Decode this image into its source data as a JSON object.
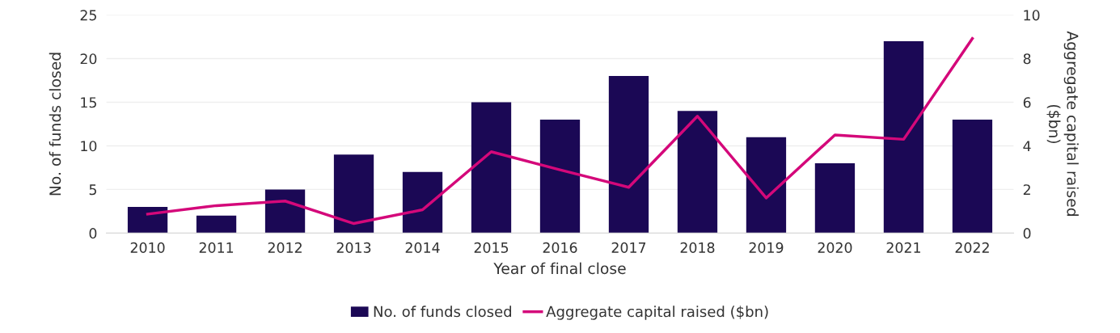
{
  "chart_data": {
    "type": "bar",
    "categories": [
      "2010",
      "2011",
      "2012",
      "2013",
      "2014",
      "2015",
      "2016",
      "2017",
      "2018",
      "2019",
      "2020",
      "2021",
      "2022"
    ],
    "xlabel": "Year of final close",
    "ylabel": "No. of funds closed",
    "y2label": "Aggregate capital raised\n($bn)",
    "series": [
      {
        "name": "No. of funds closed",
        "color": "#1b0855",
        "values": [
          3,
          2,
          5,
          9,
          7,
          15,
          13,
          18,
          14,
          11,
          8,
          22,
          13
        ]
      },
      {
        "name": "Aggregate capital raised ($bn)",
        "type": "line",
        "axis": "y2",
        "color": "#d4087a",
        "values": [
          0.87,
          1.26,
          1.47,
          0.44,
          1.07,
          3.73,
          2.9,
          2.1,
          5.36,
          1.61,
          4.5,
          4.3,
          8.92
        ]
      }
    ],
    "ylim": [
      0,
      25
    ],
    "yticks": [
      0,
      5,
      10,
      15,
      20,
      25
    ],
    "y2lim": [
      0,
      10
    ],
    "y2ticks": [
      0,
      2,
      4,
      6,
      8,
      10
    ],
    "grid": "y",
    "legend": "bottom",
    "marker": "none",
    "line_style": "solid"
  }
}
